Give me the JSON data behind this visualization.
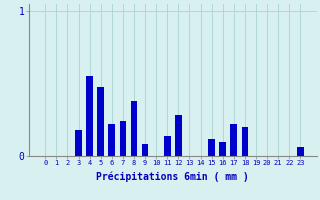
{
  "xlabel": "Précipitations 6min ( mm )",
  "background_color": "#d8f0f0",
  "bar_color": "#0000cc",
  "grid_color": "#b0d8d8",
  "ylim": [
    0,
    1.05
  ],
  "yticks": [
    0,
    1
  ],
  "categories": [
    0,
    1,
    2,
    3,
    4,
    5,
    6,
    7,
    8,
    9,
    10,
    11,
    12,
    13,
    14,
    15,
    16,
    17,
    18,
    19,
    20,
    21,
    22,
    23
  ],
  "values": [
    0.0,
    0.0,
    0.0,
    0.18,
    0.55,
    0.48,
    0.22,
    0.24,
    0.38,
    0.08,
    0.0,
    0.14,
    0.28,
    0.0,
    0.0,
    0.12,
    0.1,
    0.22,
    0.2,
    0.0,
    0.0,
    0.0,
    0.0,
    0.06
  ],
  "tick_label_color": "#0000bb",
  "xlabel_color": "#0000bb",
  "bar_width": 0.6,
  "figsize": [
    3.2,
    2.0
  ],
  "dpi": 100
}
